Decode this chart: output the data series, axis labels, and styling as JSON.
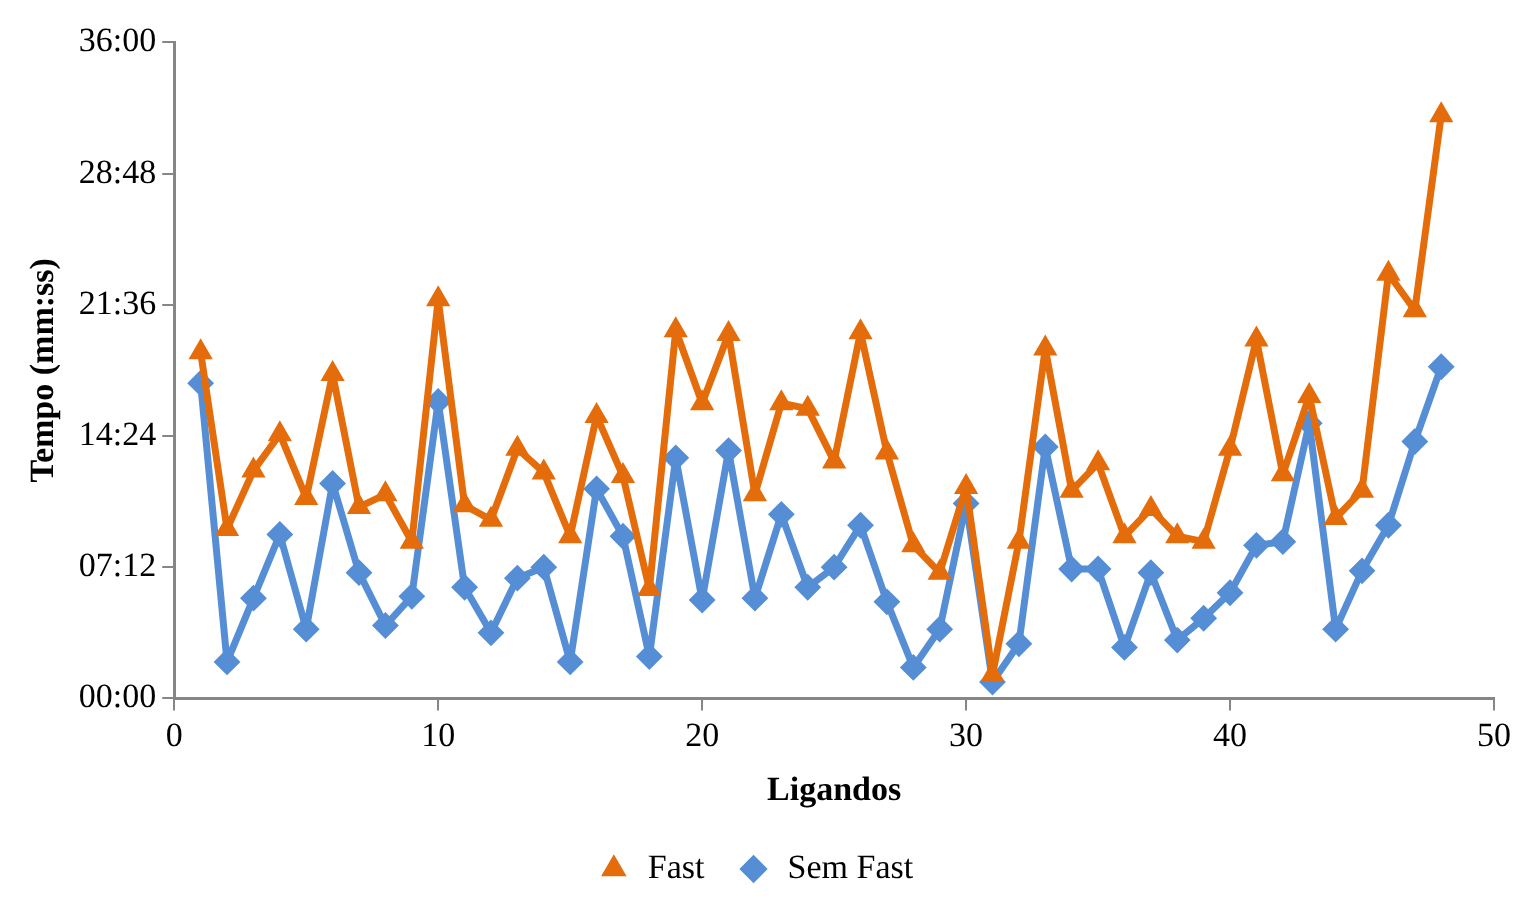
{
  "chart_data": {
    "type": "line",
    "xlabel": "Ligandos",
    "ylabel": "Tempo (mm:ss)",
    "x": [
      1,
      2,
      3,
      4,
      5,
      6,
      7,
      8,
      9,
      10,
      11,
      12,
      13,
      14,
      15,
      16,
      17,
      18,
      19,
      20,
      21,
      22,
      23,
      24,
      25,
      26,
      27,
      28,
      29,
      30,
      31,
      32,
      33,
      34,
      35,
      36,
      37,
      38,
      39,
      40,
      41,
      42,
      43,
      44,
      45,
      46,
      47,
      48
    ],
    "xlim": [
      0,
      50
    ],
    "xticks": [
      0,
      10,
      20,
      30,
      40,
      50
    ],
    "ylim": [
      0,
      36
    ],
    "yticks": [
      {
        "value": 0,
        "label": "00:00"
      },
      {
        "value": 7.2,
        "label": "07:12"
      },
      {
        "value": 14.4,
        "label": "14:24"
      },
      {
        "value": 21.6,
        "label": "21:36"
      },
      {
        "value": 28.8,
        "label": "28:48"
      },
      {
        "value": 36,
        "label": "36:00"
      }
    ],
    "grid": false,
    "legend": "bottom",
    "line_style": "solid",
    "series": [
      {
        "name": "Sem Fast",
        "color": "#558ed5",
        "marker": "diamond",
        "values": [
          17.3,
          2.0,
          5.5,
          9.0,
          3.8,
          11.8,
          6.9,
          4.0,
          5.6,
          16.3,
          6.1,
          3.6,
          6.6,
          7.2,
          2.0,
          11.5,
          8.9,
          2.3,
          13.2,
          5.4,
          13.6,
          5.5,
          10.1,
          6.1,
          7.2,
          9.5,
          5.3,
          1.7,
          3.8,
          10.7,
          0.9,
          3.0,
          13.8,
          7.1,
          7.1,
          2.8,
          6.9,
          3.2,
          4.4,
          5.8,
          8.4,
          8.6,
          15.1,
          3.8,
          7.0,
          9.5,
          14.1,
          18.2
        ]
      },
      {
        "name": "Fast",
        "color": "#e46c0a",
        "marker": "triangle",
        "values": [
          19.0,
          9.3,
          12.5,
          14.5,
          11.0,
          17.8,
          10.5,
          11.2,
          8.6,
          21.9,
          10.6,
          9.8,
          13.7,
          12.4,
          8.9,
          15.5,
          12.2,
          6.0,
          20.2,
          16.2,
          20.0,
          11.2,
          16.2,
          15.9,
          13.0,
          20.1,
          13.5,
          8.4,
          6.9,
          11.6,
          1.3,
          8.6,
          19.2,
          11.4,
          12.9,
          8.9,
          10.4,
          8.9,
          8.6,
          13.7,
          19.7,
          12.3,
          16.6,
          9.9,
          11.4,
          23.3,
          21.3,
          32.0
        ]
      }
    ]
  }
}
